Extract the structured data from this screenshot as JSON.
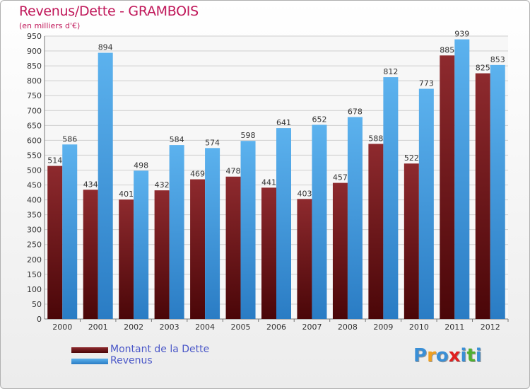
{
  "chart_data": {
    "type": "bar",
    "title": "Revenus/Dette - GRAMBOIS",
    "subtitle": "(en milliers d'€)",
    "categories": [
      "2000",
      "2001",
      "2002",
      "2003",
      "2004",
      "2005",
      "2006",
      "2007",
      "2008",
      "2009",
      "2010",
      "2011",
      "2012"
    ],
    "series": [
      {
        "name": "Montant de la Dette",
        "values": [
          514,
          434,
          401,
          432,
          469,
          478,
          441,
          403,
          457,
          588,
          522,
          885,
          825
        ],
        "color": "#7a1a1e"
      },
      {
        "name": "Revenus",
        "values": [
          586,
          894,
          498,
          584,
          574,
          598,
          641,
          652,
          678,
          812,
          773,
          939,
          853
        ],
        "color": "#4aa3e6"
      }
    ],
    "ylim": [
      0,
      950
    ],
    "yticks": [
      0,
      50,
      100,
      150,
      200,
      250,
      300,
      350,
      400,
      450,
      500,
      550,
      600,
      650,
      700,
      750,
      800,
      850,
      900,
      950
    ],
    "grid": true,
    "legend_position": "bottom-left"
  },
  "logo": {
    "letters": [
      "P",
      "r",
      "o",
      "x",
      "i",
      "t",
      "i"
    ],
    "colors": [
      "#3a8fd6",
      "#f0a020",
      "#3a8fd6",
      "#e02020",
      "#3a8fd6",
      "#50b030",
      "#3a8fd6"
    ]
  }
}
